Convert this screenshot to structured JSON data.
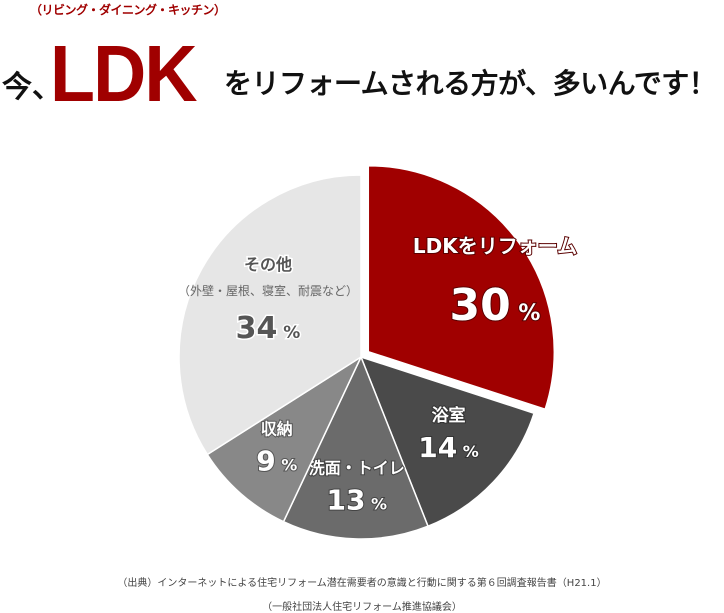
{
  "header": {
    "ruby": "（リビング・ダイニング・キッチン）",
    "prefix": "今、",
    "highlight": "LDK",
    "suffix": "をリフォームされる方が、多いんです！"
  },
  "chart_data": {
    "type": "pie",
    "start": "top",
    "direction": "clockwise",
    "slices": [
      {
        "label": "LDKをリフォーム",
        "value": 30,
        "value_label": "30",
        "color": "#a00000",
        "exploded": true
      },
      {
        "label": "浴室",
        "value": 14,
        "value_label": "14",
        "color": "#4a4a4a"
      },
      {
        "label": "洗面・トイレ",
        "value": 13,
        "value_label": "13",
        "color": "#6b6b6b"
      },
      {
        "label": "収納",
        "value": 9,
        "value_label": "9",
        "color": "#888888"
      },
      {
        "label": "その他",
        "sublabel": "（外壁・屋根、寝室、耐震など）",
        "value": 34,
        "value_label": "34",
        "color": "#e6e6e6"
      }
    ],
    "unit": "%"
  },
  "footnote": {
    "source": "（出典）インターネットによる住宅リフォーム潜在需要者の意識と行動に関する第６回調査報告書（H21.1）",
    "org": "（一般社団法人住宅リフォーム推進協議会）"
  }
}
